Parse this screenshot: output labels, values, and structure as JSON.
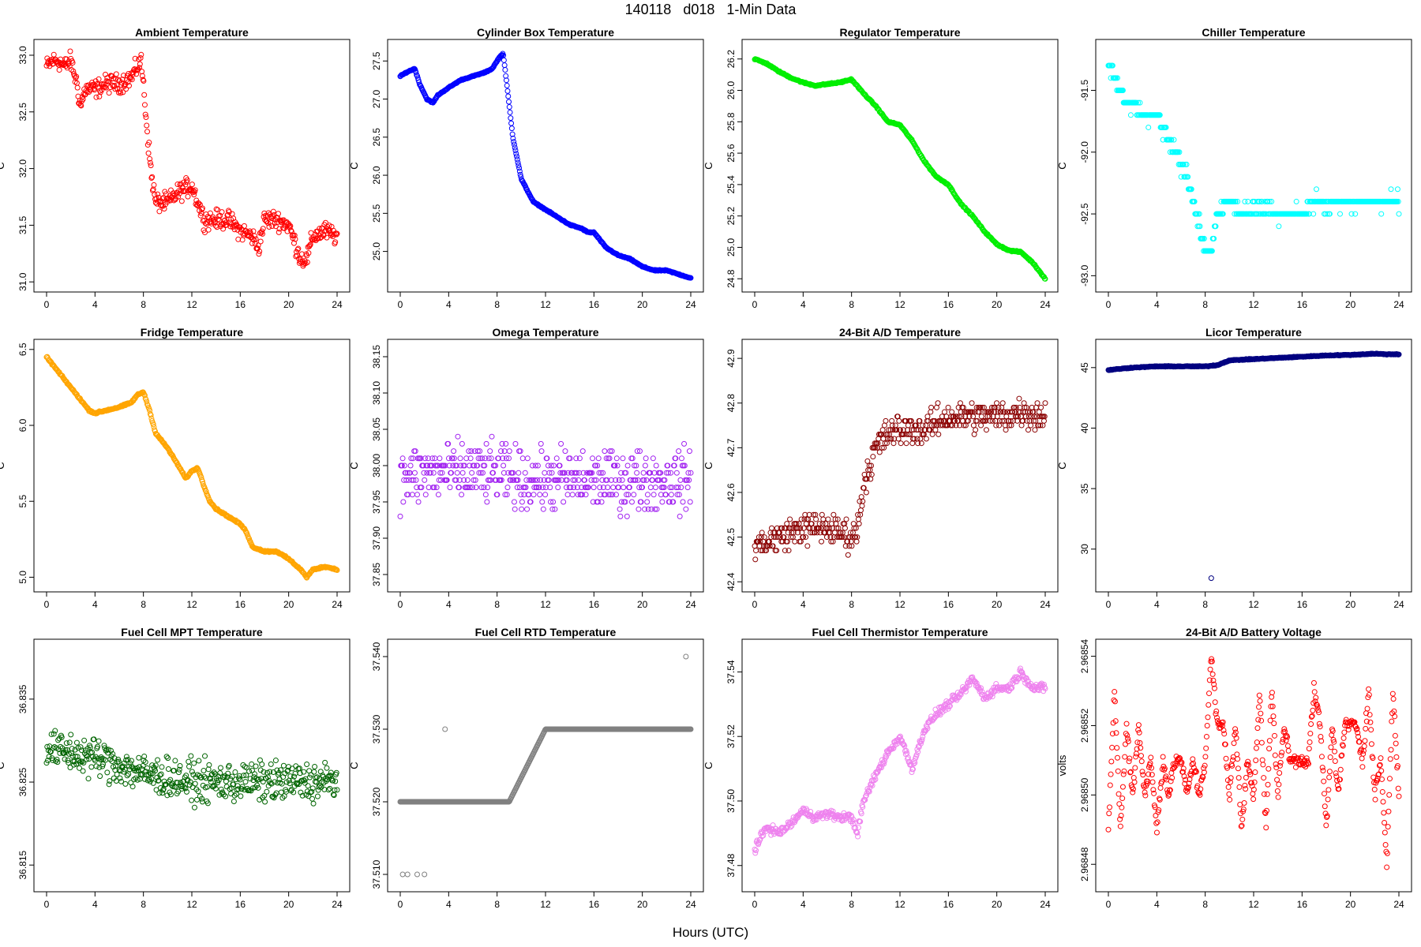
{
  "figure": {
    "title": "140118   d018   1-Min Data",
    "xlabel": "Hours (UTC)"
  },
  "chart_data": [
    {
      "type": "scatter",
      "title": "Ambient Temperature",
      "ylabel": "C",
      "color": "#ff0000",
      "xlim": [
        0,
        24
      ],
      "ylim": [
        31.0,
        33.05
      ],
      "xticks": [
        "0",
        "4",
        "8",
        "12",
        "16",
        "20",
        "24"
      ],
      "yticks": [
        "31.0",
        "31.5",
        "32.0",
        "32.5",
        "33.0"
      ],
      "ytick_values": [
        31.0,
        31.5,
        32.0,
        32.5,
        33.0
      ],
      "series": [
        {
          "x": [
            0,
            0.5,
            1,
            1.5,
            2,
            2.5,
            2.8,
            3.2,
            4,
            5,
            6,
            7,
            7.5,
            7.8,
            8,
            8.3,
            8.6,
            9,
            9.5,
            10,
            11,
            12,
            13,
            14,
            15,
            16,
            17,
            17.5,
            18,
            19,
            20,
            21,
            21.5,
            22,
            23,
            24
          ],
          "y": [
            32.9,
            32.95,
            32.95,
            32.9,
            32.95,
            32.75,
            32.55,
            32.7,
            32.7,
            32.75,
            32.75,
            32.8,
            32.9,
            32.95,
            32.75,
            32.35,
            32.0,
            31.7,
            31.7,
            31.7,
            31.8,
            31.85,
            31.55,
            31.55,
            31.55,
            31.45,
            31.4,
            31.3,
            31.55,
            31.55,
            31.5,
            31.2,
            31.2,
            31.4,
            31.45,
            31.4
          ],
          "noise": 0.12
        }
      ]
    },
    {
      "type": "scatter",
      "title": "Cylinder Box Temperature",
      "ylabel": "C",
      "color": "#0000ff",
      "xlim": [
        0,
        24
      ],
      "ylim": [
        24.6,
        27.65
      ],
      "xticks": [
        "0",
        "4",
        "8",
        "12",
        "16",
        "20",
        "24"
      ],
      "yticks": [
        "25.0",
        "25.5",
        "26.0",
        "26.5",
        "27.0",
        "27.5"
      ],
      "ytick_values": [
        25.0,
        25.5,
        26.0,
        26.5,
        27.0,
        27.5
      ],
      "series": [
        {
          "x": [
            0,
            0.5,
            1.2,
            1.6,
            2.2,
            2.7,
            3.1,
            4,
            5,
            6,
            7,
            7.6,
            8.2,
            8.5,
            8.8,
            9.3,
            10,
            11,
            12,
            13,
            14,
            15,
            15.5,
            16,
            17,
            18,
            19,
            20,
            21,
            22,
            23,
            24
          ],
          "y": [
            27.3,
            27.35,
            27.4,
            27.2,
            27.0,
            26.95,
            27.05,
            27.15,
            27.25,
            27.3,
            27.35,
            27.4,
            27.55,
            27.6,
            27.2,
            26.5,
            25.95,
            25.65,
            25.55,
            25.45,
            25.35,
            25.3,
            25.25,
            25.25,
            25.05,
            24.95,
            24.9,
            24.8,
            24.75,
            24.75,
            24.7,
            24.65
          ],
          "noise": 0.01
        }
      ]
    },
    {
      "type": "scatter",
      "title": "Regulator Temperature",
      "ylabel": "C",
      "color": "#00ee00",
      "xlim": [
        0,
        24
      ],
      "ylim": [
        24.78,
        26.26
      ],
      "xticks": [
        "0",
        "4",
        "8",
        "12",
        "16",
        "20",
        "24"
      ],
      "yticks": [
        "24.8",
        "25.0",
        "25.2",
        "25.4",
        "25.6",
        "25.8",
        "26.0",
        "26.2"
      ],
      "ytick_values": [
        24.8,
        25.0,
        25.2,
        25.4,
        25.6,
        25.8,
        26.0,
        26.2
      ],
      "series": [
        {
          "x": [
            0,
            1,
            2,
            3,
            4,
            5,
            6,
            7,
            8,
            9,
            10,
            11,
            12,
            13,
            14,
            15,
            16,
            17,
            18,
            19,
            20,
            21,
            22,
            23,
            24
          ],
          "y": [
            26.2,
            26.17,
            26.12,
            26.08,
            26.05,
            26.03,
            26.04,
            26.05,
            26.07,
            25.98,
            25.9,
            25.8,
            25.78,
            25.68,
            25.55,
            25.45,
            25.4,
            25.28,
            25.2,
            25.1,
            25.02,
            24.98,
            24.97,
            24.9,
            24.8
          ],
          "noise": 0.006
        }
      ]
    },
    {
      "type": "scatter",
      "title": "Chiller Temperature",
      "ylabel": "C",
      "color": "#00ffff",
      "xlim": [
        0,
        24
      ],
      "ylim": [
        -93.05,
        -91.17
      ],
      "xticks": [
        "0",
        "4",
        "8",
        "12",
        "16",
        "20",
        "24"
      ],
      "yticks": [
        "-93.0",
        "-92.5",
        "-92.0",
        "-91.5"
      ],
      "ytick_values": [
        -93.0,
        -92.5,
        -92.0,
        -91.5
      ],
      "series": [
        {
          "x": [
            0,
            0.5,
            1,
            1.5,
            2,
            3,
            4,
            4.5,
            5,
            5.5,
            6,
            6.5,
            7,
            7.5,
            8,
            8.5,
            9,
            10,
            11,
            12,
            13,
            14,
            15,
            16,
            17,
            18,
            19,
            20,
            21,
            22,
            23,
            24
          ],
          "y": [
            -91.3,
            -91.4,
            -91.5,
            -91.6,
            -91.6,
            -91.7,
            -91.7,
            -91.8,
            -91.9,
            -92.0,
            -92.1,
            -92.2,
            -92.4,
            -92.6,
            -92.8,
            -92.8,
            -92.5,
            -92.4,
            -92.5,
            -92.45,
            -92.45,
            -92.5,
            -92.5,
            -92.5,
            -92.4,
            -92.45,
            -92.4,
            -92.4,
            -92.4,
            -92.4,
            -92.4,
            -92.4
          ],
          "noise": 0.08,
          "step": 0.1
        }
      ]
    },
    {
      "type": "scatter",
      "title": "Fridge Temperature",
      "ylabel": "C",
      "color": "#ffa500",
      "xlim": [
        0,
        24
      ],
      "ylim": [
        4.97,
        6.5
      ],
      "xticks": [
        "0",
        "4",
        "8",
        "12",
        "16",
        "20",
        "24"
      ],
      "yticks": [
        "5.0",
        "5.5",
        "6.0",
        "6.5"
      ],
      "ytick_values": [
        5.0,
        5.5,
        6.0,
        6.5
      ],
      "series": [
        {
          "x": [
            0,
            0.5,
            1,
            1.5,
            2,
            3,
            3.5,
            4,
            5,
            6,
            7,
            7.5,
            8,
            8.5,
            9,
            10,
            11,
            11.5,
            12,
            12.5,
            13,
            13.5,
            14,
            15,
            16,
            16.5,
            17,
            18,
            19,
            20,
            21,
            21.5,
            22,
            23,
            24
          ],
          "y": [
            6.45,
            6.4,
            6.35,
            6.3,
            6.25,
            6.15,
            6.1,
            6.08,
            6.1,
            6.12,
            6.15,
            6.2,
            6.22,
            6.1,
            5.95,
            5.85,
            5.72,
            5.65,
            5.7,
            5.72,
            5.6,
            5.5,
            5.45,
            5.4,
            5.35,
            5.3,
            5.2,
            5.17,
            5.17,
            5.12,
            5.05,
            5.0,
            5.05,
            5.07,
            5.05
          ],
          "noise": 0.008
        }
      ]
    },
    {
      "type": "scatter",
      "title": "Omega Temperature",
      "ylabel": "C",
      "color": "#a020f0",
      "xlim": [
        0,
        24
      ],
      "ylim": [
        37.84,
        38.16
      ],
      "xticks": [
        "0",
        "4",
        "8",
        "12",
        "16",
        "20",
        "24"
      ],
      "yticks": [
        "37.85",
        "37.90",
        "37.95",
        "38.00",
        "38.05",
        "38.10",
        "38.15"
      ],
      "ytick_values": [
        37.85,
        37.9,
        37.95,
        38.0,
        38.05,
        38.1,
        38.15
      ],
      "series": [
        {
          "x": [
            0,
            2,
            4,
            6,
            8,
            10,
            12,
            14,
            16,
            18,
            20,
            22,
            24
          ],
          "y": [
            37.98,
            37.99,
            37.99,
            37.99,
            37.99,
            37.98,
            37.98,
            37.98,
            37.98,
            37.98,
            37.98,
            37.98,
            37.98
          ],
          "noise": 0.06,
          "step": 0.01
        }
      ]
    },
    {
      "type": "scatter",
      "title": "24-Bit A/D Temperature",
      "ylabel": "C",
      "color": "#8b0000",
      "xlim": [
        0,
        24
      ],
      "ylim": [
        42.4,
        42.92
      ],
      "xticks": [
        "0",
        "4",
        "8",
        "12",
        "16",
        "20",
        "24"
      ],
      "yticks": [
        "42.4",
        "42.5",
        "42.6",
        "42.7",
        "42.8",
        "42.9"
      ],
      "ytick_values": [
        42.4,
        42.5,
        42.6,
        42.7,
        42.8,
        42.9
      ],
      "series": [
        {
          "x": [
            0,
            2,
            4,
            6,
            8,
            8.5,
            9,
            10,
            11,
            12,
            13,
            14,
            16,
            18,
            20,
            22,
            24
          ],
          "y": [
            42.48,
            42.5,
            42.52,
            42.52,
            42.5,
            42.52,
            42.62,
            42.7,
            42.73,
            42.74,
            42.74,
            42.74,
            42.77,
            42.77,
            42.77,
            42.78,
            42.77
          ],
          "noise": 0.05,
          "step": 0.01
        }
      ]
    },
    {
      "type": "scatter",
      "title": "Licor Temperature",
      "ylabel": "C",
      "color": "#000080",
      "xlim": [
        0,
        24
      ],
      "ylim": [
        27.3,
        46.5
      ],
      "xticks": [
        "0",
        "4",
        "8",
        "12",
        "16",
        "20",
        "24"
      ],
      "yticks": [
        "30",
        "35",
        "40",
        "45"
      ],
      "ytick_values": [
        30,
        35,
        40,
        45
      ],
      "series": [
        {
          "x": [
            0,
            2,
            4,
            6,
            8,
            9,
            10,
            12,
            14,
            16,
            18,
            20,
            22,
            23,
            24
          ],
          "y": [
            44.8,
            45.0,
            45.1,
            45.1,
            45.1,
            45.2,
            45.6,
            45.7,
            45.8,
            45.9,
            46.0,
            46.05,
            46.15,
            46.1,
            46.1
          ],
          "noise": 0.05
        }
      ],
      "outliers": [
        {
          "x": 8.5,
          "y": 27.6
        }
      ]
    },
    {
      "type": "scatter",
      "title": "Fuel Cell MPT Temperature",
      "ylabel": "C",
      "color": "#006400",
      "xlim": [
        0,
        24
      ],
      "ylim": [
        36.813,
        36.841
      ],
      "xticks": [
        "0",
        "4",
        "8",
        "12",
        "16",
        "20",
        "24"
      ],
      "yticks": [
        "36.815",
        "36.825",
        "36.835"
      ],
      "ytick_values": [
        36.815,
        36.825,
        36.835
      ],
      "series": [
        {
          "x": [
            0,
            4,
            8,
            12,
            16,
            20,
            24
          ],
          "y": [
            36.829,
            36.828,
            36.826,
            36.825,
            36.825,
            36.825,
            36.825
          ],
          "noise": 0.0035
        }
      ]
    },
    {
      "type": "scatter",
      "title": "Fuel Cell RTD Temperature",
      "ylabel": "C",
      "color": "#808080",
      "xlim": [
        0,
        24
      ],
      "ylim": [
        37.509,
        37.541
      ],
      "xticks": [
        "0",
        "4",
        "8",
        "12",
        "16",
        "20",
        "24"
      ],
      "yticks": [
        "37.510",
        "37.520",
        "37.530",
        "37.540"
      ],
      "ytick_values": [
        37.51,
        37.52,
        37.53,
        37.54
      ],
      "series": [
        {
          "x": [
            0,
            9,
            12,
            24
          ],
          "y": [
            37.52,
            37.52,
            37.53,
            37.53
          ],
          "noise": 0
        }
      ],
      "outliers": [
        {
          "x": 23.6,
          "y": 37.54
        },
        {
          "x": 3.7,
          "y": 37.53
        },
        {
          "x": 0.2,
          "y": 37.51
        },
        {
          "x": 0.6,
          "y": 37.51
        },
        {
          "x": 1.4,
          "y": 37.51
        },
        {
          "x": 2.0,
          "y": 37.51
        }
      ]
    },
    {
      "type": "scatter",
      "title": "Fuel Cell Thermistor Temperature",
      "ylabel": "C",
      "color": "#ee82ee",
      "xlim": [
        0,
        24
      ],
      "ylim": [
        37.475,
        37.547
      ],
      "xticks": [
        "0",
        "4",
        "8",
        "12",
        "16",
        "20",
        "24"
      ],
      "yticks": [
        "37.48",
        "37.50",
        "37.52",
        "37.54"
      ],
      "ytick_values": [
        37.48,
        37.5,
        37.52,
        37.54
      ],
      "series": [
        {
          "x": [
            0,
            1,
            2,
            3,
            4,
            5,
            6,
            7,
            8,
            8.5,
            9,
            10,
            11,
            12,
            13,
            14,
            15,
            16,
            17,
            18,
            19,
            20,
            21,
            22,
            23,
            24
          ],
          "y": [
            37.485,
            37.492,
            37.49,
            37.493,
            37.497,
            37.495,
            37.496,
            37.495,
            37.495,
            37.49,
            37.5,
            37.508,
            37.515,
            37.52,
            37.51,
            37.522,
            37.527,
            37.53,
            37.533,
            37.538,
            37.532,
            37.535,
            37.535,
            37.54,
            37.535,
            37.535
          ],
          "noise": 0.002
        }
      ]
    },
    {
      "type": "scatter",
      "title": "24-Bit A/D Battery Voltage",
      "ylabel": "volts",
      "color": "#ff0000",
      "xlim": [
        0,
        24
      ],
      "ylim": [
        2.968475,
        2.968542
      ],
      "xticks": [
        "0",
        "4",
        "8",
        "12",
        "16",
        "20",
        "24"
      ],
      "yticks": [
        "2.96848",
        "2.96850",
        "2.96852",
        "2.96854"
      ],
      "ytick_values": [
        2.96848,
        2.9685,
        2.96852,
        2.96854
      ],
      "series": [
        {
          "x": [
            0,
            0.5,
            1,
            1.5,
            2,
            2.5,
            3,
            3.5,
            4,
            4.5,
            5,
            5.5,
            6,
            6.5,
            7,
            7.5,
            8,
            8.5,
            9,
            9.5,
            10,
            10.5,
            11,
            11.5,
            12,
            12.5,
            13,
            13.5,
            14,
            14.5,
            15,
            15.5,
            16,
            16.5,
            17,
            17.5,
            18,
            18.5,
            19,
            19.5,
            20,
            20.5,
            21,
            21.5,
            22,
            22.5,
            23,
            23.5,
            24
          ],
          "y": [
            2.96849,
            2.96853,
            2.96849,
            2.96852,
            2.9685,
            2.96852,
            2.9685,
            2.96851,
            2.96849,
            2.96851,
            2.9685,
            2.96851,
            2.96851,
            2.9685,
            2.96851,
            2.9685,
            2.96851,
            2.96854,
            2.96852,
            2.96852,
            2.9685,
            2.96852,
            2.96849,
            2.96851,
            2.9685,
            2.96853,
            2.96849,
            2.96853,
            2.9685,
            2.96852,
            2.96851,
            2.96851,
            2.96851,
            2.96851,
            2.96853,
            2.96852,
            2.96849,
            2.96852,
            2.9685,
            2.96852,
            2.96852,
            2.96852,
            2.96851,
            2.96853,
            2.9685,
            2.96851,
            2.96848,
            2.96853,
            2.9685
          ],
          "noise": 3e-06
        }
      ]
    }
  ]
}
